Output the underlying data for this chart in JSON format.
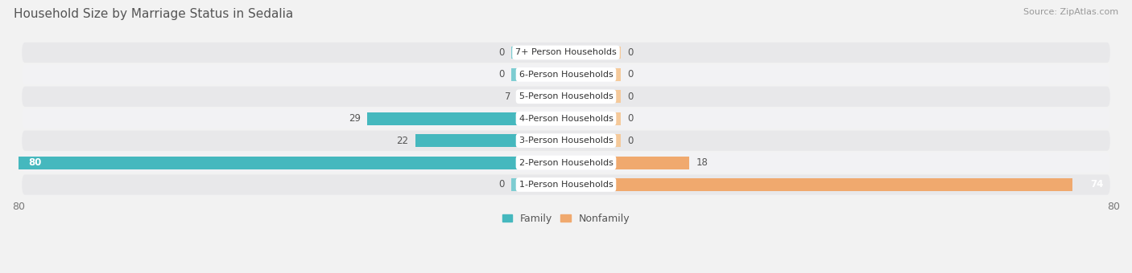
{
  "title": "Household Size by Marriage Status in Sedalia",
  "source": "Source: ZipAtlas.com",
  "categories": [
    "7+ Person Households",
    "6-Person Households",
    "5-Person Households",
    "4-Person Households",
    "3-Person Households",
    "2-Person Households",
    "1-Person Households"
  ],
  "family": [
    0,
    0,
    7,
    29,
    22,
    80,
    0
  ],
  "nonfamily": [
    0,
    0,
    0,
    0,
    0,
    18,
    74
  ],
  "family_color": "#45b8be",
  "nonfamily_color": "#f0a96e",
  "stub_family_color": "#7ecdd2",
  "stub_nonfamily_color": "#f5c99a",
  "xlim_min": -80,
  "xlim_max": 80,
  "bar_height": 0.58,
  "stub_value": 8,
  "row_bg_color": "#e8e8ea",
  "row_bg_light": "#f2f2f4",
  "white": "#ffffff",
  "text_dark": "#555555",
  "text_light": "#ffffff",
  "bg_color": "#f2f2f2",
  "title_fontsize": 11,
  "source_fontsize": 8,
  "bar_label_fontsize": 8.5,
  "category_fontsize": 8,
  "legend_fontsize": 9,
  "axis_label_fontsize": 9
}
